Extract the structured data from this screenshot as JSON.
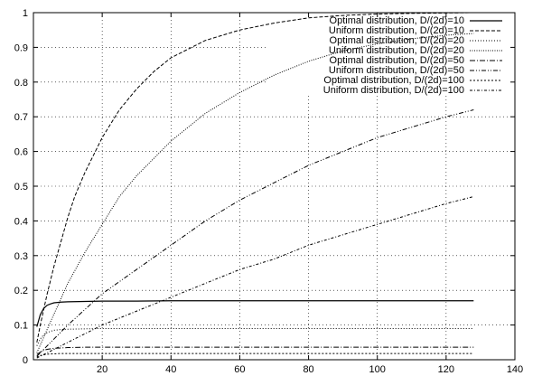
{
  "chart_data": {
    "type": "line",
    "xlim": [
      0,
      140
    ],
    "ylim": [
      0,
      1
    ],
    "x_ticks": [
      20,
      40,
      60,
      80,
      100,
      120,
      140
    ],
    "y_ticks": [
      0,
      0.1,
      0.2,
      0.3,
      0.4,
      0.5,
      0.6,
      0.7,
      0.8,
      0.9,
      1
    ],
    "grid": true,
    "legend_position": "top-right",
    "series": [
      {
        "name": "Optimal distribution, D/(2d)=10",
        "dash": "solid",
        "x": [
          1,
          2,
          3,
          4,
          5,
          6,
          8,
          10,
          15,
          20,
          30,
          40,
          60,
          80,
          100,
          128
        ],
        "y": [
          0.095,
          0.13,
          0.148,
          0.157,
          0.161,
          0.164,
          0.166,
          0.167,
          0.168,
          0.169,
          0.169,
          0.17,
          0.17,
          0.17,
          0.17,
          0.17
        ]
      },
      {
        "name": "Uniform distribution, D/(2d)=10",
        "dash": "dashed",
        "x": [
          1,
          2,
          4,
          6,
          8,
          10,
          12,
          15,
          20,
          25,
          30,
          35,
          40,
          50,
          60,
          70,
          80,
          90,
          100,
          110,
          128
        ],
        "y": [
          0.05,
          0.1,
          0.19,
          0.27,
          0.34,
          0.41,
          0.47,
          0.54,
          0.64,
          0.72,
          0.78,
          0.83,
          0.87,
          0.92,
          0.95,
          0.97,
          0.985,
          0.992,
          0.996,
          0.998,
          1.0
        ]
      },
      {
        "name": "Optimal distribution, D/(2d)=20",
        "dash": "dotted",
        "x": [
          1,
          2,
          3,
          4,
          5,
          6,
          8,
          10,
          15,
          20,
          40,
          60,
          80,
          100,
          128
        ],
        "y": [
          0.04,
          0.06,
          0.072,
          0.078,
          0.082,
          0.085,
          0.087,
          0.088,
          0.089,
          0.09,
          0.09,
          0.09,
          0.09,
          0.09,
          0.09
        ]
      },
      {
        "name": "Uniform distribution, D/(2d)=20",
        "dash": "fine-dotted",
        "x": [
          1,
          5,
          10,
          15,
          20,
          25,
          30,
          40,
          50,
          60,
          70,
          80,
          90,
          100,
          110,
          120,
          128
        ],
        "y": [
          0.02,
          0.11,
          0.22,
          0.31,
          0.39,
          0.47,
          0.53,
          0.63,
          0.71,
          0.77,
          0.82,
          0.86,
          0.89,
          0.91,
          0.925,
          0.935,
          0.94
        ]
      },
      {
        "name": "Optimal distribution, D/(2d)=50",
        "dash": "dash-dot",
        "x": [
          1,
          2,
          3,
          4,
          6,
          8,
          10,
          15,
          20,
          40,
          60,
          80,
          100,
          128
        ],
        "y": [
          0.015,
          0.022,
          0.027,
          0.03,
          0.033,
          0.034,
          0.035,
          0.036,
          0.036,
          0.036,
          0.036,
          0.036,
          0.036,
          0.036
        ]
      },
      {
        "name": "Uniform distribution, D/(2d)=50",
        "dash": "dash-dot-dot",
        "x": [
          1,
          10,
          20,
          30,
          40,
          50,
          60,
          70,
          80,
          90,
          100,
          110,
          120,
          128
        ],
        "y": [
          0.01,
          0.1,
          0.19,
          0.26,
          0.33,
          0.4,
          0.46,
          0.51,
          0.56,
          0.6,
          0.64,
          0.67,
          0.7,
          0.72
        ]
      },
      {
        "name": "Optimal distribution, D/(2d)=100",
        "dash": "short-dash",
        "x": [
          1,
          2,
          3,
          4,
          6,
          8,
          10,
          20,
          40,
          60,
          80,
          100,
          128
        ],
        "y": [
          0.008,
          0.012,
          0.014,
          0.016,
          0.017,
          0.018,
          0.018,
          0.018,
          0.018,
          0.018,
          0.018,
          0.018,
          0.018
        ]
      },
      {
        "name": "Uniform distribution, D/(2d)=100",
        "dash": "short-dash-dot",
        "x": [
          1,
          10,
          20,
          30,
          40,
          50,
          60,
          70,
          80,
          90,
          100,
          110,
          120,
          128
        ],
        "y": [
          0.005,
          0.05,
          0.1,
          0.14,
          0.18,
          0.22,
          0.26,
          0.29,
          0.33,
          0.36,
          0.39,
          0.42,
          0.45,
          0.47
        ]
      }
    ]
  }
}
